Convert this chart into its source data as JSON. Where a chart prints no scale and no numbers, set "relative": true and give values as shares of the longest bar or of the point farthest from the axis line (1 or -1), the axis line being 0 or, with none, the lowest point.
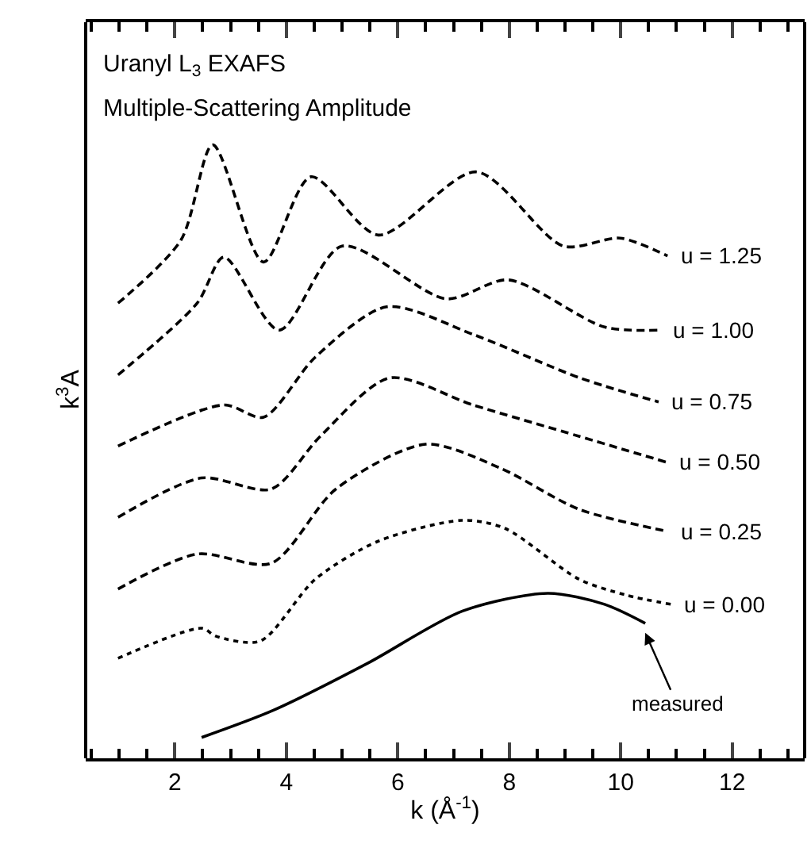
{
  "chart_data": {
    "type": "line",
    "title": "Uranyl L$_{3}$ EXAFS",
    "subtitle": "Multiple-Scattering Amplitude",
    "xlabel": "k (Å$^{-1}$)",
    "ylabel": "k$^{3}$A",
    "relative": true,
    "xlim": [
      0.4,
      13.3
    ],
    "xticks": [
      2,
      4,
      6,
      8,
      10,
      12
    ],
    "legend": false,
    "marker": "none",
    "series": [
      {
        "name": "u = 1.25",
        "color": "#000000",
        "line_style": "dashed",
        "x": [
          0.98,
          2.11,
          2.68,
          3.59,
          4.44,
          5.65,
          7.41,
          8.97,
          9.99,
          10.84
        ],
        "values": [
          0.742,
          0.845,
          1.0,
          0.809,
          0.948,
          0.853,
          0.956,
          0.835,
          0.848,
          0.819
        ]
      },
      {
        "name": "u = 1.00",
        "color": "#000000",
        "line_style": "dashed",
        "x": [
          0.98,
          2.4,
          2.88,
          3.87,
          5.0,
          6.87,
          7.98,
          9.71,
          10.7
        ],
        "values": [
          0.625,
          0.742,
          0.817,
          0.698,
          0.835,
          0.749,
          0.78,
          0.703,
          0.698
        ]
      },
      {
        "name": "u = 0.75",
        "color": "#000000",
        "line_style": "dashed",
        "x": [
          0.98,
          2.88,
          3.59,
          4.52,
          5.8,
          7.38,
          9.27,
          10.68
        ],
        "values": [
          0.509,
          0.576,
          0.556,
          0.654,
          0.736,
          0.69,
          0.62,
          0.581
        ]
      },
      {
        "name": "u = 0.50",
        "color": "#000000",
        "line_style": "dashed",
        "x": [
          0.98,
          2.48,
          3.73,
          4.61,
          5.85,
          7.35,
          9.25,
          10.81
        ],
        "values": [
          0.393,
          0.457,
          0.439,
          0.525,
          0.62,
          0.576,
          0.525,
          0.483
        ]
      },
      {
        "name": "u = 0.25",
        "color": "#000000",
        "line_style": "dashed",
        "x": [
          0.98,
          2.4,
          3.73,
          4.89,
          6.5,
          7.84,
          9.25,
          10.84
        ],
        "values": [
          0.276,
          0.333,
          0.318,
          0.439,
          0.512,
          0.473,
          0.406,
          0.37
        ]
      },
      {
        "name": "u = 0.00",
        "color": "#000000",
        "line_style": "dotted",
        "x": [
          0.98,
          2.48,
          2.74,
          3.53,
          4.52,
          5.65,
          7.16,
          7.92,
          9.25,
          10.1,
          10.9
        ],
        "values": [
          0.163,
          0.212,
          0.199,
          0.191,
          0.292,
          0.354,
          0.388,
          0.375,
          0.292,
          0.266,
          0.251
        ]
      },
      {
        "color": "#000000",
        "line_style": "solid",
        "x": [
          2.48,
          3.76,
          5.46,
          7.16,
          8.69,
          9.71,
          10.44
        ],
        "values": [
          0.034,
          0.078,
          0.155,
          0.24,
          0.269,
          0.251,
          0.22
        ]
      }
    ],
    "annotations": [
      "measured"
    ]
  }
}
